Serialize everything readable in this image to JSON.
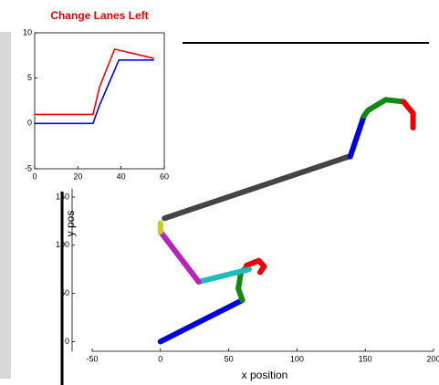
{
  "chart_data": [
    {
      "type": "line",
      "title": "Change Lanes Left",
      "xlim": [
        0,
        60
      ],
      "ylim": [
        -5,
        10
      ],
      "xticks": [
        0,
        20,
        40,
        60
      ],
      "yticks": [
        -5,
        0,
        5,
        10
      ],
      "series": [
        {
          "color": "#ff0000",
          "x": [
            0,
            27,
            30,
            37,
            55
          ],
          "values": [
            1,
            1,
            4,
            8.2,
            7.2
          ]
        },
        {
          "color": "#0000ff",
          "x": [
            0,
            27,
            30,
            39,
            55
          ],
          "values": [
            0,
            0,
            2,
            7,
            7
          ]
        }
      ]
    },
    {
      "type": "line",
      "xlabel": "x position",
      "ylabel": "y pos",
      "xlim": [
        -50,
        200
      ],
      "ylim": [
        -10,
        310
      ],
      "xticks": [
        -50,
        0,
        50,
        100,
        150,
        200
      ],
      "yticks": [
        0,
        50,
        100,
        150
      ],
      "series": [
        {
          "color": "#0000dd",
          "x": [
            0,
            60
          ],
          "values": [
            0,
            43
          ]
        },
        {
          "color": "#118811",
          "x": [
            60,
            57,
            59,
            63
          ],
          "values": [
            43,
            55,
            72,
            77
          ]
        },
        {
          "color": "#ee0000",
          "x": [
            63,
            72,
            76,
            73
          ],
          "values": [
            79,
            84,
            78,
            72
          ]
        },
        {
          "color": "#22bbbb",
          "x": [
            65,
            28
          ],
          "values": [
            75,
            62
          ]
        },
        {
          "color": "#bb22bb",
          "x": [
            28,
            0
          ],
          "values": [
            62,
            114
          ]
        },
        {
          "color": "#cccc22",
          "x": [
            0,
            0
          ],
          "values": [
            114,
            123
          ]
        },
        {
          "color": "#444444",
          "x": [
            3,
            138
          ],
          "values": [
            128,
            192
          ]
        },
        {
          "color": "#0000dd",
          "x": [
            139,
            149
          ],
          "values": [
            192,
            234
          ]
        },
        {
          "color": "#118811",
          "x": [
            149,
            152,
            165,
            178
          ],
          "values": [
            234,
            240,
            251,
            249
          ]
        },
        {
          "color": "#ee0000",
          "x": [
            178,
            185,
            185
          ],
          "values": [
            249,
            237,
            222
          ]
        }
      ]
    }
  ]
}
